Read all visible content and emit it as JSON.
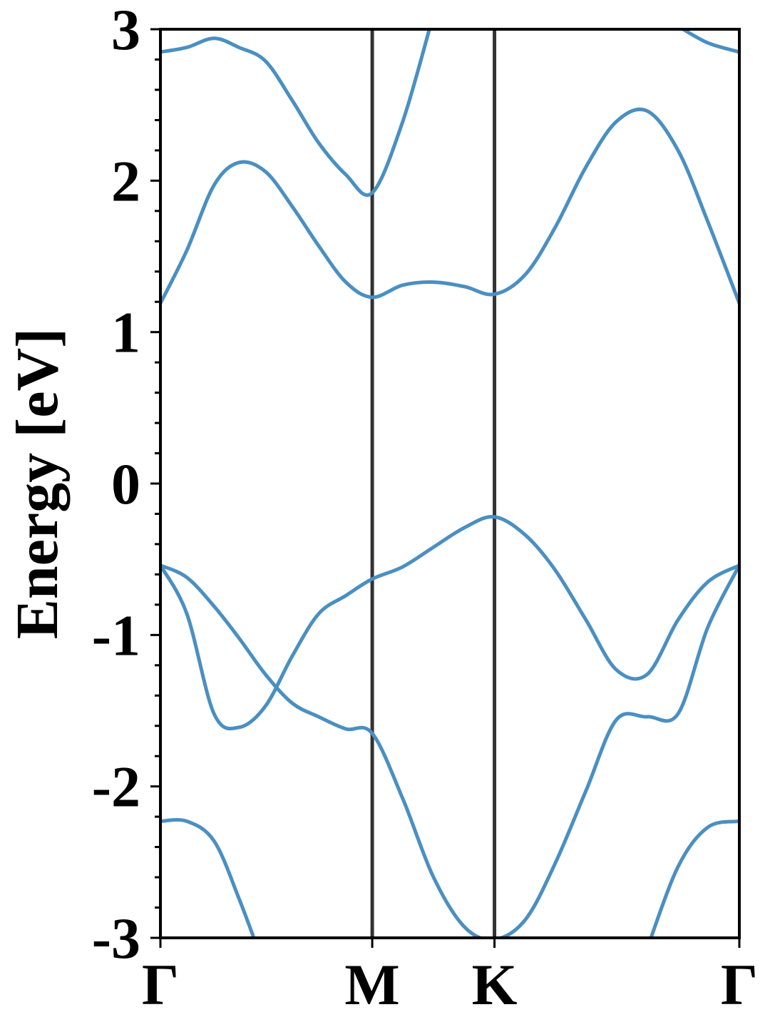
{
  "chart_data": {
    "type": "line",
    "y_label": "Energy [eV]",
    "x": [
      0,
      0.072,
      0.146,
      0.214,
      0.286,
      0.359,
      0.431,
      0.505,
      0.577,
      0.66,
      0.744,
      0.829,
      0.91,
      0.994,
      1.075,
      1.159,
      1.242,
      1.326,
      1.41,
      1.491,
      1.577
    ],
    "series": [
      {
        "color": "#4a8fc2",
        "values": [
          2.85,
          2.88,
          2.94,
          2.88,
          2.79,
          2.53,
          2.25,
          2.04,
          1.92,
          2.39,
          3.1,
          null,
          null,
          null,
          null,
          null,
          null,
          null,
          3.02,
          2.91,
          2.85
        ]
      },
      {
        "color": "#4a8fc2",
        "values": [
          1.19,
          1.54,
          1.97,
          2.12,
          2.06,
          1.83,
          1.57,
          1.33,
          1.23,
          1.31,
          1.33,
          1.3,
          1.25,
          1.38,
          1.69,
          2.09,
          2.39,
          2.46,
          2.2,
          1.73,
          1.19
        ]
      },
      {
        "color": "#4a8fc2",
        "values": [
          -0.54,
          -0.86,
          -1.52,
          -1.61,
          -1.47,
          -1.14,
          -0.86,
          -0.74,
          -0.63,
          -0.55,
          -0.42,
          -0.29,
          -0.22,
          -0.34,
          -0.57,
          -0.9,
          -1.23,
          -1.26,
          -0.9,
          -0.65,
          -0.54
        ]
      },
      {
        "color": "#4a8fc2",
        "values": [
          -0.54,
          -0.62,
          -0.81,
          -1.02,
          -1.26,
          -1.45,
          -1.54,
          -1.62,
          -1.65,
          -2.08,
          -2.6,
          -2.93,
          -3.01,
          -2.88,
          -2.51,
          -2.03,
          -1.56,
          -1.54,
          -1.52,
          -0.95,
          -0.54
        ]
      },
      {
        "color": "#4a8fc2",
        "values": [
          -2.23,
          -2.23,
          -2.36,
          -2.74,
          -3.21,
          null,
          null,
          null,
          null,
          null,
          null,
          null,
          null,
          null,
          null,
          null,
          null,
          -3.07,
          -2.53,
          -2.27,
          -2.23
        ]
      }
    ],
    "xlim": [
      0,
      1.577
    ],
    "xticks": [
      {
        "value": 0,
        "label": "Γ"
      },
      {
        "value": 0.577,
        "label": "M"
      },
      {
        "value": 0.91,
        "label": "K"
      },
      {
        "value": 1.577,
        "label": "Γ"
      }
    ],
    "ylim": [
      -3,
      3
    ],
    "yticks": [
      -3,
      -2,
      -1,
      0,
      1,
      2,
      3
    ],
    "minor_yticks": [
      -2.8,
      -2.6,
      -2.4,
      -2.2,
      -1.8,
      -1.6,
      -1.4,
      -1.2,
      -0.8,
      -0.6,
      -0.4,
      -0.2,
      0.2,
      0.4,
      0.6,
      0.8,
      1.2,
      1.4,
      1.6,
      1.8,
      2.2,
      2.4,
      2.6,
      2.8
    ],
    "symmetry_lines": true,
    "symmetry_line_color": "#333333"
  }
}
